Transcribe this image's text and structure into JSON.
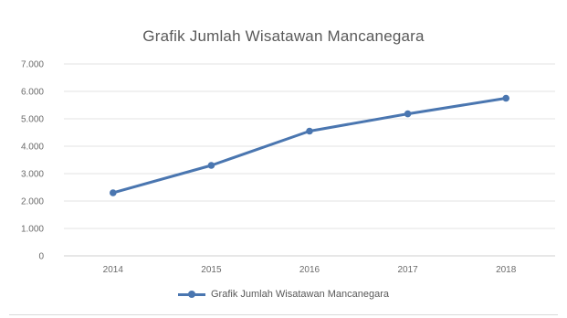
{
  "chart_data": {
    "type": "line",
    "title": "Grafik Jumlah Wisatawan Mancanegara",
    "xlabel": "",
    "ylabel": "",
    "categories": [
      "2014",
      "2015",
      "2016",
      "2017",
      "2018"
    ],
    "ylim": [
      0,
      7000
    ],
    "yticks": [
      "0",
      "1.000",
      "2.000",
      "3.000",
      "4.000",
      "5.000",
      "6.000",
      "7.000"
    ],
    "grid": true,
    "legend_position": "bottom",
    "series": [
      {
        "name": "Grafik Jumlah Wisatawan Mancanegara",
        "values": [
          2300,
          3300,
          4550,
          5180,
          5750
        ],
        "color": "#4a76b0"
      }
    ]
  },
  "colors": {
    "gridline": "#e3e3e3",
    "axis": "#cfcfcf",
    "series": "#4a76b0"
  }
}
